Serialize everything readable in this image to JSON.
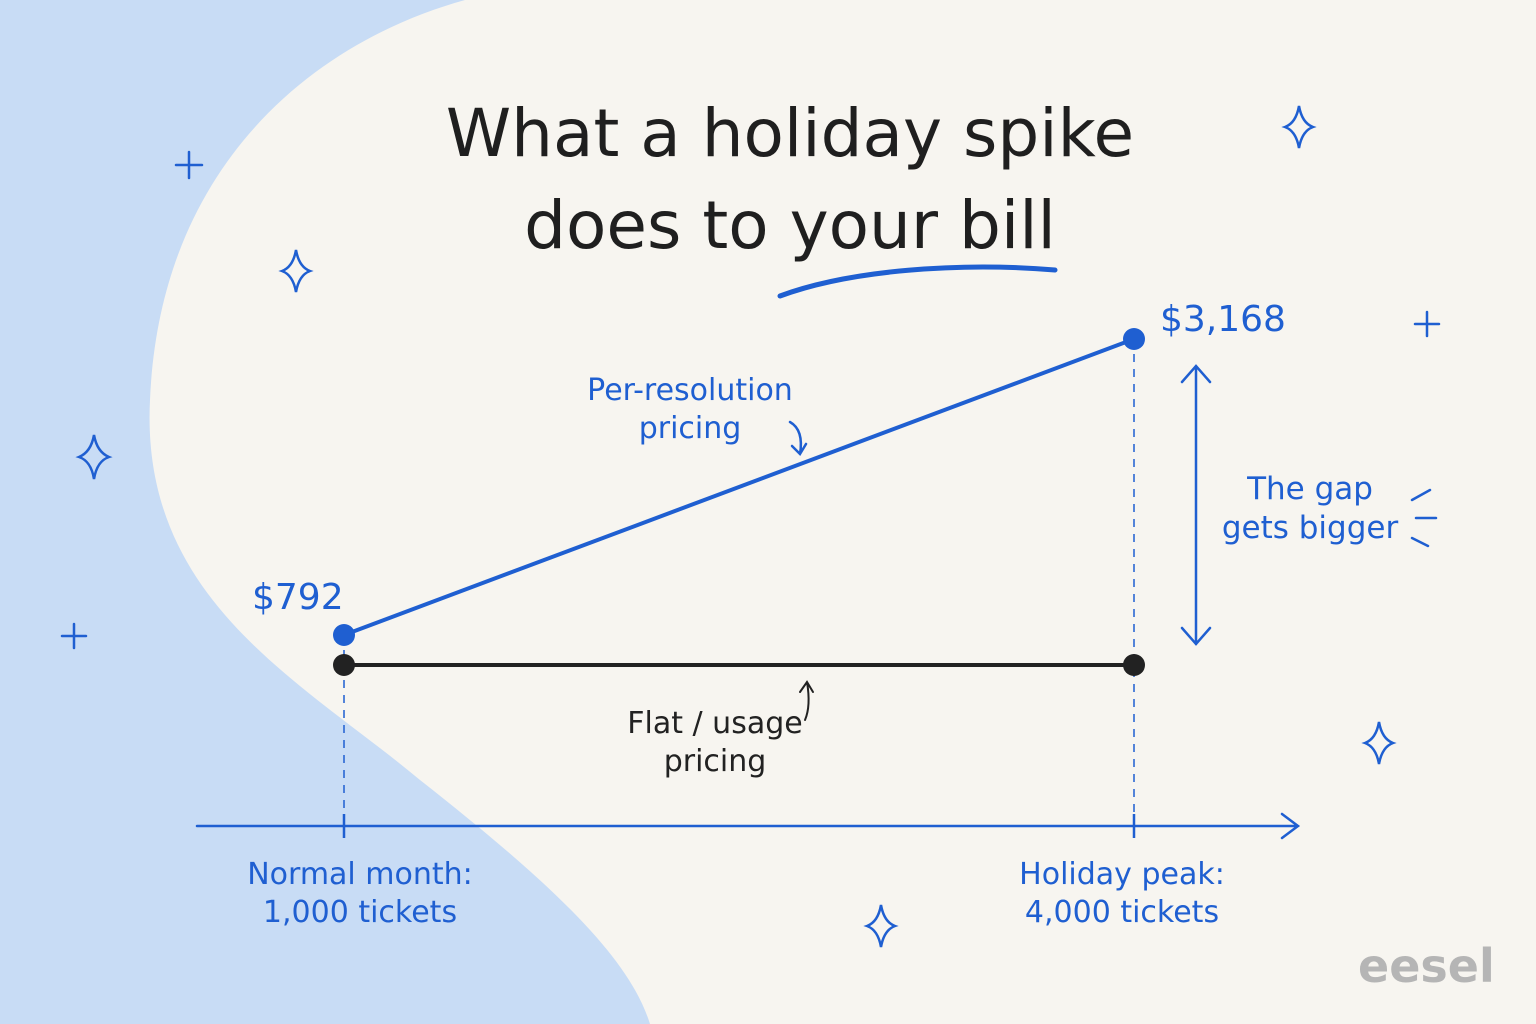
{
  "chart_data": {
    "type": "line",
    "title": "What a holiday spike\ndoes to your bill",
    "categories": [
      "Normal month:\n1,000 tickets",
      "Holiday peak:\n4,000 tickets"
    ],
    "series": [
      {
        "name": "Per-resolution\npricing",
        "color": "#1f5fd1",
        "values": [
          792,
          3168
        ],
        "value_labels": [
          "$792",
          "$3,168"
        ]
      },
      {
        "name": "Flat / usage\npricing",
        "color": "#222222",
        "values": [
          551,
          551
        ]
      }
    ],
    "annotations": [
      "The gap\ngets bigger"
    ],
    "brand": "eesel"
  }
}
